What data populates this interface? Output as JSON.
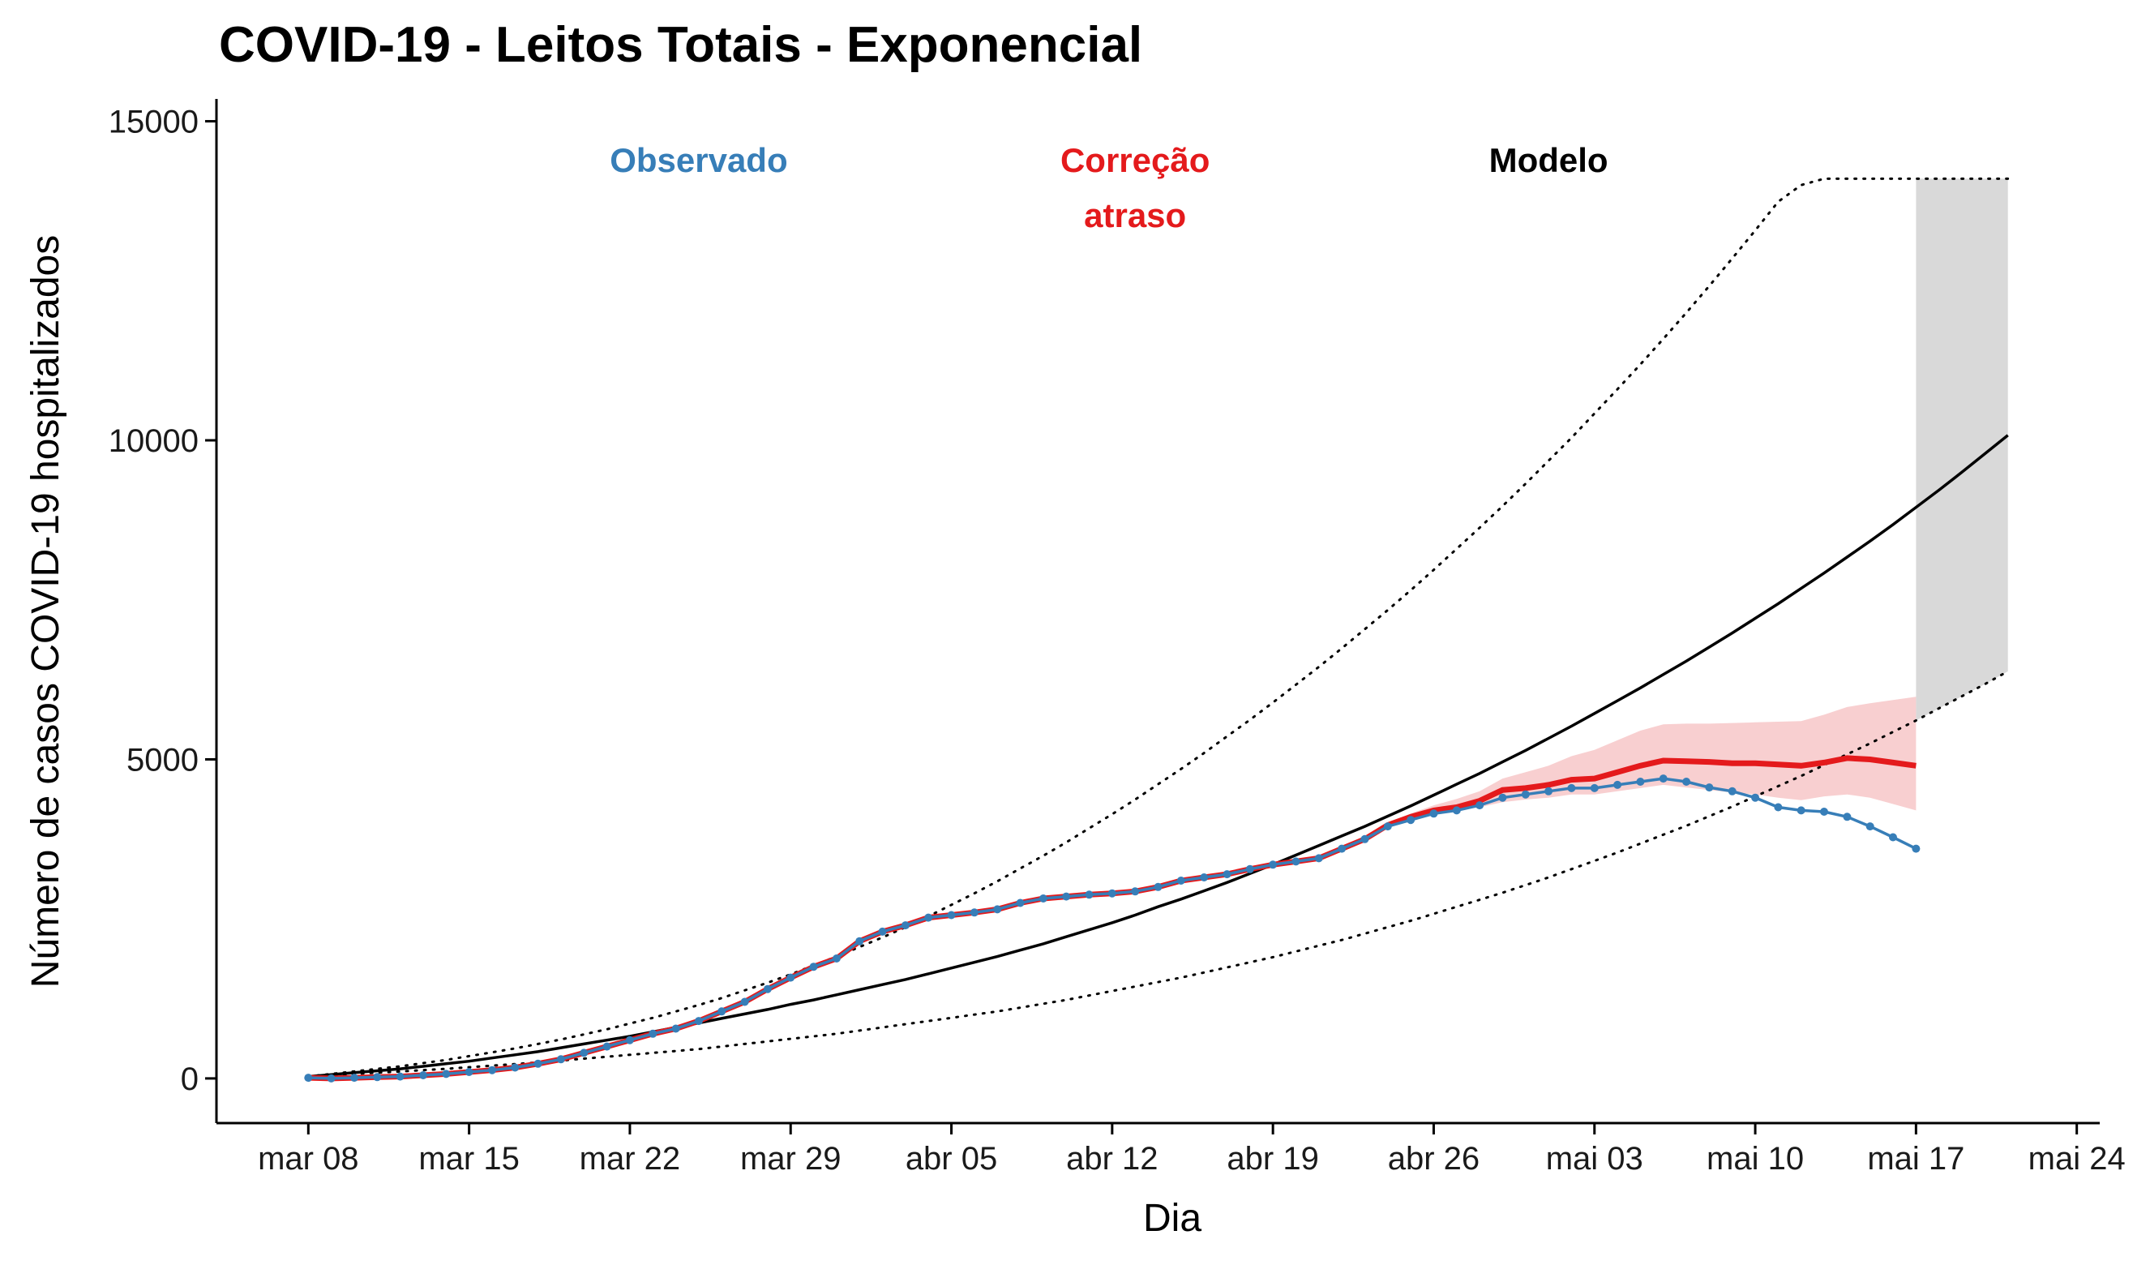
{
  "chart_data": {
    "type": "line",
    "title": "COVID-19 - Leitos Totais - Exponencial",
    "xlabel": "Dia",
    "ylabel": "Número de casos COVID-19 hospitalizados",
    "x_tick_labels": [
      "mar 08",
      "mar 15",
      "mar 22",
      "mar 29",
      "abr 05",
      "abr 12",
      "abr 19",
      "abr 26",
      "mai 03",
      "mai 10",
      "mai 17",
      "mai 24"
    ],
    "y_tick_labels": [
      "0",
      "5000",
      "10000",
      "15000"
    ],
    "y_ticks": [
      0,
      5000,
      10000,
      15000
    ],
    "ylim": [
      -700,
      15350
    ],
    "xlim": [
      "2020-03-04",
      "2020-05-25"
    ],
    "grid": false,
    "annotations": [
      {
        "text": "Observado",
        "color": "#377eb8",
        "day": "2020-03-25"
      },
      {
        "text": "Correção",
        "color": "#e41a1c",
        "day": "2020-04-13"
      },
      {
        "text": "atraso",
        "color": "#e41a1c",
        "day": "2020-04-13"
      },
      {
        "text": "Modelo",
        "color": "#000000",
        "day": "2020-05-01"
      }
    ],
    "colors": {
      "observed": "#377eb8",
      "corrected": "#e41a1c",
      "corrected_band": "#f8cfd0",
      "model": "#000000",
      "model_band": "#d9d9d9"
    },
    "series": [
      {
        "key": "observed",
        "start_date": "2020-03-08",
        "values": [
          10,
          0,
          10,
          20,
          30,
          50,
          70,
          100,
          130,
          170,
          230,
          300,
          400,
          500,
          600,
          700,
          780,
          900,
          1050,
          1200,
          1400,
          1580,
          1750,
          1880,
          2150,
          2300,
          2400,
          2520,
          2560,
          2600,
          2650,
          2750,
          2820,
          2850,
          2880,
          2900,
          2930,
          3000,
          3100,
          3150,
          3200,
          3280,
          3350,
          3400,
          3450,
          3600,
          3750,
          3950,
          4050,
          4150,
          4200,
          4280,
          4400,
          4450,
          4500,
          4550,
          4550,
          4600,
          4650,
          4700,
          4650,
          4560,
          4500,
          4400,
          4250,
          4200,
          4180,
          4100,
          3950,
          3780,
          3600
        ]
      },
      {
        "key": "corrected",
        "start_date": "2020-03-08",
        "values": [
          10,
          0,
          10,
          20,
          30,
          50,
          70,
          100,
          130,
          170,
          230,
          300,
          400,
          500,
          600,
          700,
          780,
          900,
          1050,
          1200,
          1400,
          1580,
          1750,
          1880,
          2150,
          2300,
          2400,
          2520,
          2560,
          2600,
          2650,
          2750,
          2820,
          2850,
          2880,
          2900,
          2930,
          3000,
          3100,
          3150,
          3200,
          3280,
          3350,
          3400,
          3450,
          3600,
          3750,
          3970,
          4100,
          4200,
          4250,
          4350,
          4520,
          4550,
          4600,
          4680,
          4700,
          4800,
          4900,
          4980,
          4970,
          4960,
          4940,
          4940,
          4920,
          4900,
          4950,
          5020,
          5000,
          4950,
          4900
        ],
        "lower": [
          10,
          0,
          10,
          20,
          30,
          50,
          70,
          100,
          130,
          170,
          230,
          300,
          400,
          500,
          600,
          700,
          780,
          900,
          1050,
          1200,
          1400,
          1580,
          1750,
          1880,
          2150,
          2300,
          2400,
          2520,
          2560,
          2600,
          2650,
          2750,
          2820,
          2850,
          2880,
          2900,
          2930,
          3000,
          3100,
          3150,
          3200,
          3280,
          3350,
          3400,
          3450,
          3600,
          3750,
          3950,
          4050,
          4150,
          4200,
          4250,
          4330,
          4370,
          4400,
          4450,
          4450,
          4500,
          4550,
          4600,
          4560,
          4520,
          4480,
          4450,
          4400,
          4360,
          4420,
          4450,
          4400,
          4300,
          4200
        ],
        "upper": [
          10,
          0,
          10,
          20,
          30,
          50,
          70,
          100,
          130,
          170,
          230,
          300,
          400,
          500,
          600,
          700,
          780,
          900,
          1050,
          1200,
          1400,
          1580,
          1750,
          1880,
          2150,
          2300,
          2400,
          2520,
          2560,
          2600,
          2650,
          2750,
          2820,
          2850,
          2880,
          2900,
          2930,
          3000,
          3100,
          3150,
          3200,
          3280,
          3350,
          3400,
          3450,
          3600,
          3750,
          4000,
          4150,
          4280,
          4380,
          4500,
          4700,
          4800,
          4900,
          5050,
          5150,
          5300,
          5450,
          5550,
          5560,
          5560,
          5570,
          5580,
          5590,
          5600,
          5700,
          5820,
          5880,
          5930,
          5980
        ]
      },
      {
        "key": "model",
        "start_date": "2020-03-08",
        "values": [
          30,
          60,
          90,
          120,
          150,
          190,
          230,
          270,
          320,
          370,
          420,
          480,
          540,
          600,
          660,
          730,
          800,
          870,
          940,
          1010,
          1080,
          1160,
          1230,
          1310,
          1390,
          1470,
          1550,
          1640,
          1730,
          1820,
          1910,
          2010,
          2110,
          2220,
          2330,
          2440,
          2560,
          2690,
          2810,
          2940,
          3070,
          3210,
          3350,
          3500,
          3650,
          3800,
          3950,
          4110,
          4270,
          4440,
          4610,
          4780,
          4960,
          5140,
          5330,
          5520,
          5720,
          5920,
          6120,
          6330,
          6540,
          6760,
          6980,
          7210,
          7440,
          7680,
          7920,
          8170,
          8420,
          8680,
          8950,
          9220,
          9500,
          9790,
          10080
        ]
      },
      {
        "key": "model_lower",
        "start_date": "2020-03-08",
        "values": [
          30,
          50,
          70,
          90,
          110,
          130,
          150,
          175,
          200,
          225,
          250,
          280,
          310,
          340,
          370,
          400,
          430,
          460,
          500,
          540,
          580,
          620,
          660,
          700,
          750,
          800,
          850,
          900,
          950,
          1000,
          1050,
          1110,
          1170,
          1230,
          1300,
          1370,
          1440,
          1510,
          1580,
          1660,
          1740,
          1820,
          1900,
          1990,
          2080,
          2170,
          2270,
          2370,
          2470,
          2580,
          2690,
          2800,
          2910,
          3030,
          3150,
          3280,
          3410,
          3540,
          3680,
          3820,
          3960,
          4110,
          4260,
          4420,
          4580,
          4740,
          4910,
          5080,
          5250,
          5430,
          5610,
          5800,
          5990,
          6180,
          6380
        ]
      },
      {
        "key": "model_upper",
        "start_date": "2020-03-08",
        "values": [
          30,
          70,
          110,
          150,
          190,
          240,
          290,
          350,
          410,
          470,
          540,
          610,
          690,
          770,
          860,
          950,
          1050,
          1150,
          1260,
          1380,
          1500,
          1630,
          1770,
          1910,
          2060,
          2210,
          2370,
          2540,
          2720,
          2900,
          3090,
          3290,
          3490,
          3700,
          3920,
          4140,
          4370,
          4610,
          4850,
          5100,
          5360,
          5620,
          5890,
          6170,
          6450,
          6740,
          7040,
          7340,
          7650,
          7970,
          8300,
          8630,
          8970,
          9320,
          9680,
          10040,
          10420,
          10800,
          11190,
          11590,
          12000,
          12420,
          12850,
          13290,
          13740,
          14000,
          14100,
          14100,
          14100,
          14100,
          14100,
          14100,
          14100,
          14100,
          14100
        ]
      }
    ]
  }
}
